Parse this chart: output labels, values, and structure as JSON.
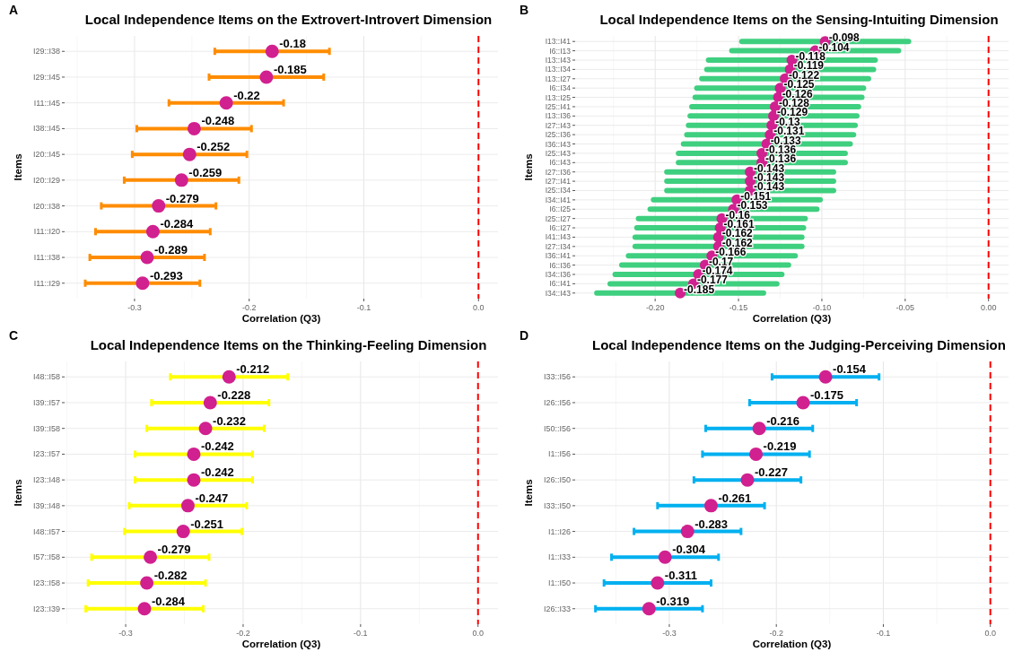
{
  "chart_data": [
    {
      "type": "scatter",
      "orientation": "horizontal",
      "title": "Local Independence Items on the Extrovert-Introvert Dimension",
      "annotations": [
        "A"
      ],
      "xlabel": "Correlation (Q3)",
      "ylabel": "Items",
      "color": "#ff8c00",
      "grid": true,
      "data_labels": true,
      "marker": "circle",
      "categories": [
        "I29::I38",
        "I29::I45",
        "I11::I45",
        "I38::I45",
        "I20::I45",
        "I20::I29",
        "I20::I38",
        "I11::I20",
        "I11::I38",
        "I11::I29"
      ],
      "series": [
        {
          "color": "#d1208f",
          "values": [
            -0.18,
            -0.185,
            -0.22,
            -0.248,
            -0.252,
            -0.259,
            -0.279,
            -0.284,
            -0.289,
            -0.293
          ],
          "errors": [
            0.05,
            0.05,
            0.05,
            0.05,
            0.05,
            0.05,
            0.05,
            0.05,
            0.05,
            0.05
          ]
        }
      ],
      "xlim": [
        -0.361,
        0.017
      ],
      "xticks": [
        -0.3,
        -0.2,
        -0.1,
        {
          "value": 0,
          "label": "0.0"
        }
      ],
      "ref_lines": [
        {
          "axis": "x",
          "value": 0,
          "color": "#ff0000",
          "line_style": "dashed"
        }
      ]
    },
    {
      "type": "scatter",
      "orientation": "horizontal",
      "title": "Local Independence Items on the Sensing-Intuiting Dimension",
      "annotations": [
        "B"
      ],
      "xlabel": "Correlation (Q3)",
      "ylabel": "Items",
      "color": "#3ecf7f",
      "grid": true,
      "data_labels": true,
      "marker": "circle",
      "categories": [
        "I13::I41",
        "I6::I13",
        "I13::I43",
        "I13::I34",
        "I13::I27",
        "I6::I34",
        "I13::I25",
        "I25::I41",
        "I13::I36",
        "I27::I43",
        "I25::I36",
        "I36::I43",
        "I25::I43",
        "I6::I43",
        "I27::I36",
        "I27::I41",
        "I25::I34",
        "I34::I41",
        "I6::I25",
        "I25::I27",
        "I6::I27",
        "I41::I43",
        "I27::I34",
        "I36::I41",
        "I6::I36",
        "I34::I36",
        "I6::I41",
        "I34::I43"
      ],
      "series": [
        {
          "color": "#d1208f",
          "values": [
            -0.098,
            -0.104,
            -0.118,
            -0.119,
            -0.122,
            -0.125,
            -0.126,
            -0.128,
            -0.129,
            -0.13,
            -0.131,
            -0.133,
            -0.136,
            -0.136,
            -0.143,
            -0.143,
            -0.143,
            -0.151,
            -0.153,
            -0.16,
            -0.161,
            -0.162,
            -0.162,
            -0.166,
            -0.17,
            -0.174,
            -0.177,
            -0.185
          ],
          "errors": [
            0.05,
            0.05,
            0.05,
            0.05,
            0.05,
            0.05,
            0.05,
            0.05,
            0.05,
            0.05,
            0.05,
            0.05,
            0.05,
            0.05,
            0.05,
            0.05,
            0.05,
            0.05,
            0.05,
            0.05,
            0.05,
            0.05,
            0.05,
            0.05,
            0.05,
            0.05,
            0.05,
            0.05
          ]
        }
      ],
      "xlim": [
        -0.248,
        0.012
      ],
      "xticks": [
        {
          "value": -0.2,
          "label": "-0.20"
        },
        {
          "value": -0.15,
          "label": "-0.15"
        },
        {
          "value": -0.1,
          "label": "-0.10"
        },
        {
          "value": -0.05,
          "label": "-0.05"
        },
        {
          "value": 0,
          "label": "0.00"
        }
      ],
      "ref_lines": [
        {
          "axis": "x",
          "value": 0,
          "color": "#ff0000",
          "line_style": "dashed"
        }
      ]
    },
    {
      "type": "scatter",
      "orientation": "horizontal",
      "title": "Local Independence Items on the Thinking-Feeling Dimension",
      "annotations": [
        "C"
      ],
      "xlabel": "Correlation (Q3)",
      "ylabel": "Items",
      "color": "#ffff00",
      "grid": true,
      "data_labels": true,
      "marker": "circle",
      "categories": [
        "I48::I58",
        "I39::I57",
        "I39::I58",
        "I23::I57",
        "I23::I48",
        "I39::I48",
        "I48::I57",
        "I57::I58",
        "I23::I58",
        "I23::I39"
      ],
      "series": [
        {
          "color": "#d1208f",
          "values": [
            -0.212,
            -0.228,
            -0.232,
            -0.242,
            -0.242,
            -0.247,
            -0.251,
            -0.279,
            -0.282,
            -0.284
          ],
          "errors": [
            0.05,
            0.05,
            0.05,
            0.05,
            0.05,
            0.05,
            0.05,
            0.05,
            0.05,
            0.05
          ]
        }
      ],
      "xlim": [
        -0.352,
        0.017
      ],
      "xticks": [
        -0.3,
        -0.2,
        -0.1,
        {
          "value": 0,
          "label": "0.0"
        }
      ],
      "ref_lines": [
        {
          "axis": "x",
          "value": 0,
          "color": "#ff0000",
          "line_style": "dashed"
        }
      ]
    },
    {
      "type": "scatter",
      "orientation": "horizontal",
      "title": "Local Independence Items on the Judging-Perceiving Dimension",
      "annotations": [
        "D"
      ],
      "xlabel": "Correlation (Q3)",
      "ylabel": "Items",
      "color": "#00b0f0",
      "grid": true,
      "data_labels": true,
      "marker": "circle",
      "categories": [
        "I33::I56",
        "I26::I56",
        "I50::I56",
        "I1::I56",
        "I26::I50",
        "I33::I50",
        "I1::I26",
        "I1::I33",
        "I1::I50",
        "I26::I33"
      ],
      "series": [
        {
          "color": "#d1208f",
          "values": [
            -0.154,
            -0.175,
            -0.216,
            -0.219,
            -0.227,
            -0.261,
            -0.283,
            -0.304,
            -0.311,
            -0.319
          ],
          "errors": [
            0.05,
            0.05,
            0.05,
            0.05,
            0.05,
            0.05,
            0.05,
            0.05,
            0.05,
            0.05
          ]
        }
      ],
      "xlim": [
        -0.388,
        0.017
      ],
      "xticks": [
        -0.3,
        -0.2,
        -0.1,
        {
          "value": 0,
          "label": "0.0"
        }
      ],
      "ref_lines": [
        {
          "axis": "x",
          "value": 0,
          "color": "#ff0000",
          "line_style": "dashed"
        }
      ]
    }
  ]
}
